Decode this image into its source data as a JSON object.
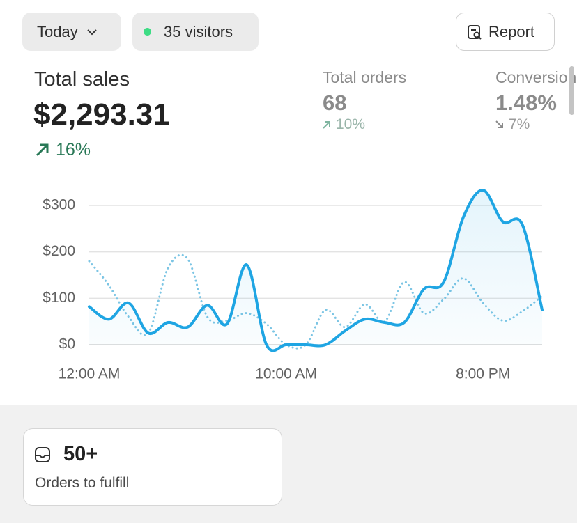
{
  "toolbar": {
    "period": "Today",
    "visitors": "35 visitors",
    "report": "Report"
  },
  "metrics": [
    {
      "label": "Total sales",
      "value": "$2,293.31",
      "change": "16%"
    },
    {
      "label": "Total orders",
      "value": "68",
      "change": "10%"
    },
    {
      "label": "Conversion",
      "value": "1.48%",
      "change": "7%"
    }
  ],
  "chart_data": {
    "type": "line",
    "categories": [
      "12:00 AM",
      null,
      null,
      null,
      null,
      null,
      null,
      null,
      null,
      null,
      "10:00 AM",
      null,
      null,
      null,
      null,
      null,
      null,
      null,
      null,
      null,
      "8:00 PM",
      null,
      null,
      null
    ],
    "series": [
      {
        "color": "#1fa5e3",
        "style": "solid",
        "area": true,
        "values": [
          82,
          55,
          90,
          25,
          48,
          38,
          85,
          45,
          172,
          0,
          0,
          0,
          0,
          30,
          55,
          48,
          48,
          120,
          135,
          275,
          333,
          265,
          258,
          75
        ]
      },
      {
        "color": "#7cc5e4",
        "style": "dotted",
        "values": [
          180,
          128,
          60,
          25,
          165,
          185,
          60,
          52,
          68,
          45,
          0,
          0,
          75,
          38,
          87,
          50,
          135,
          68,
          98,
          143,
          90,
          52,
          72,
          105
        ]
      }
    ],
    "ylim": [
      0,
      300
    ],
    "yticks": [
      {
        "value": 0,
        "label": "$0"
      },
      {
        "value": 100,
        "label": "$100"
      },
      {
        "value": 200,
        "label": "$200"
      },
      {
        "value": 300,
        "label": "$300"
      }
    ],
    "grid": true
  },
  "cards": [
    {
      "value": "50+",
      "label": "Orders to fulfill"
    }
  ]
}
